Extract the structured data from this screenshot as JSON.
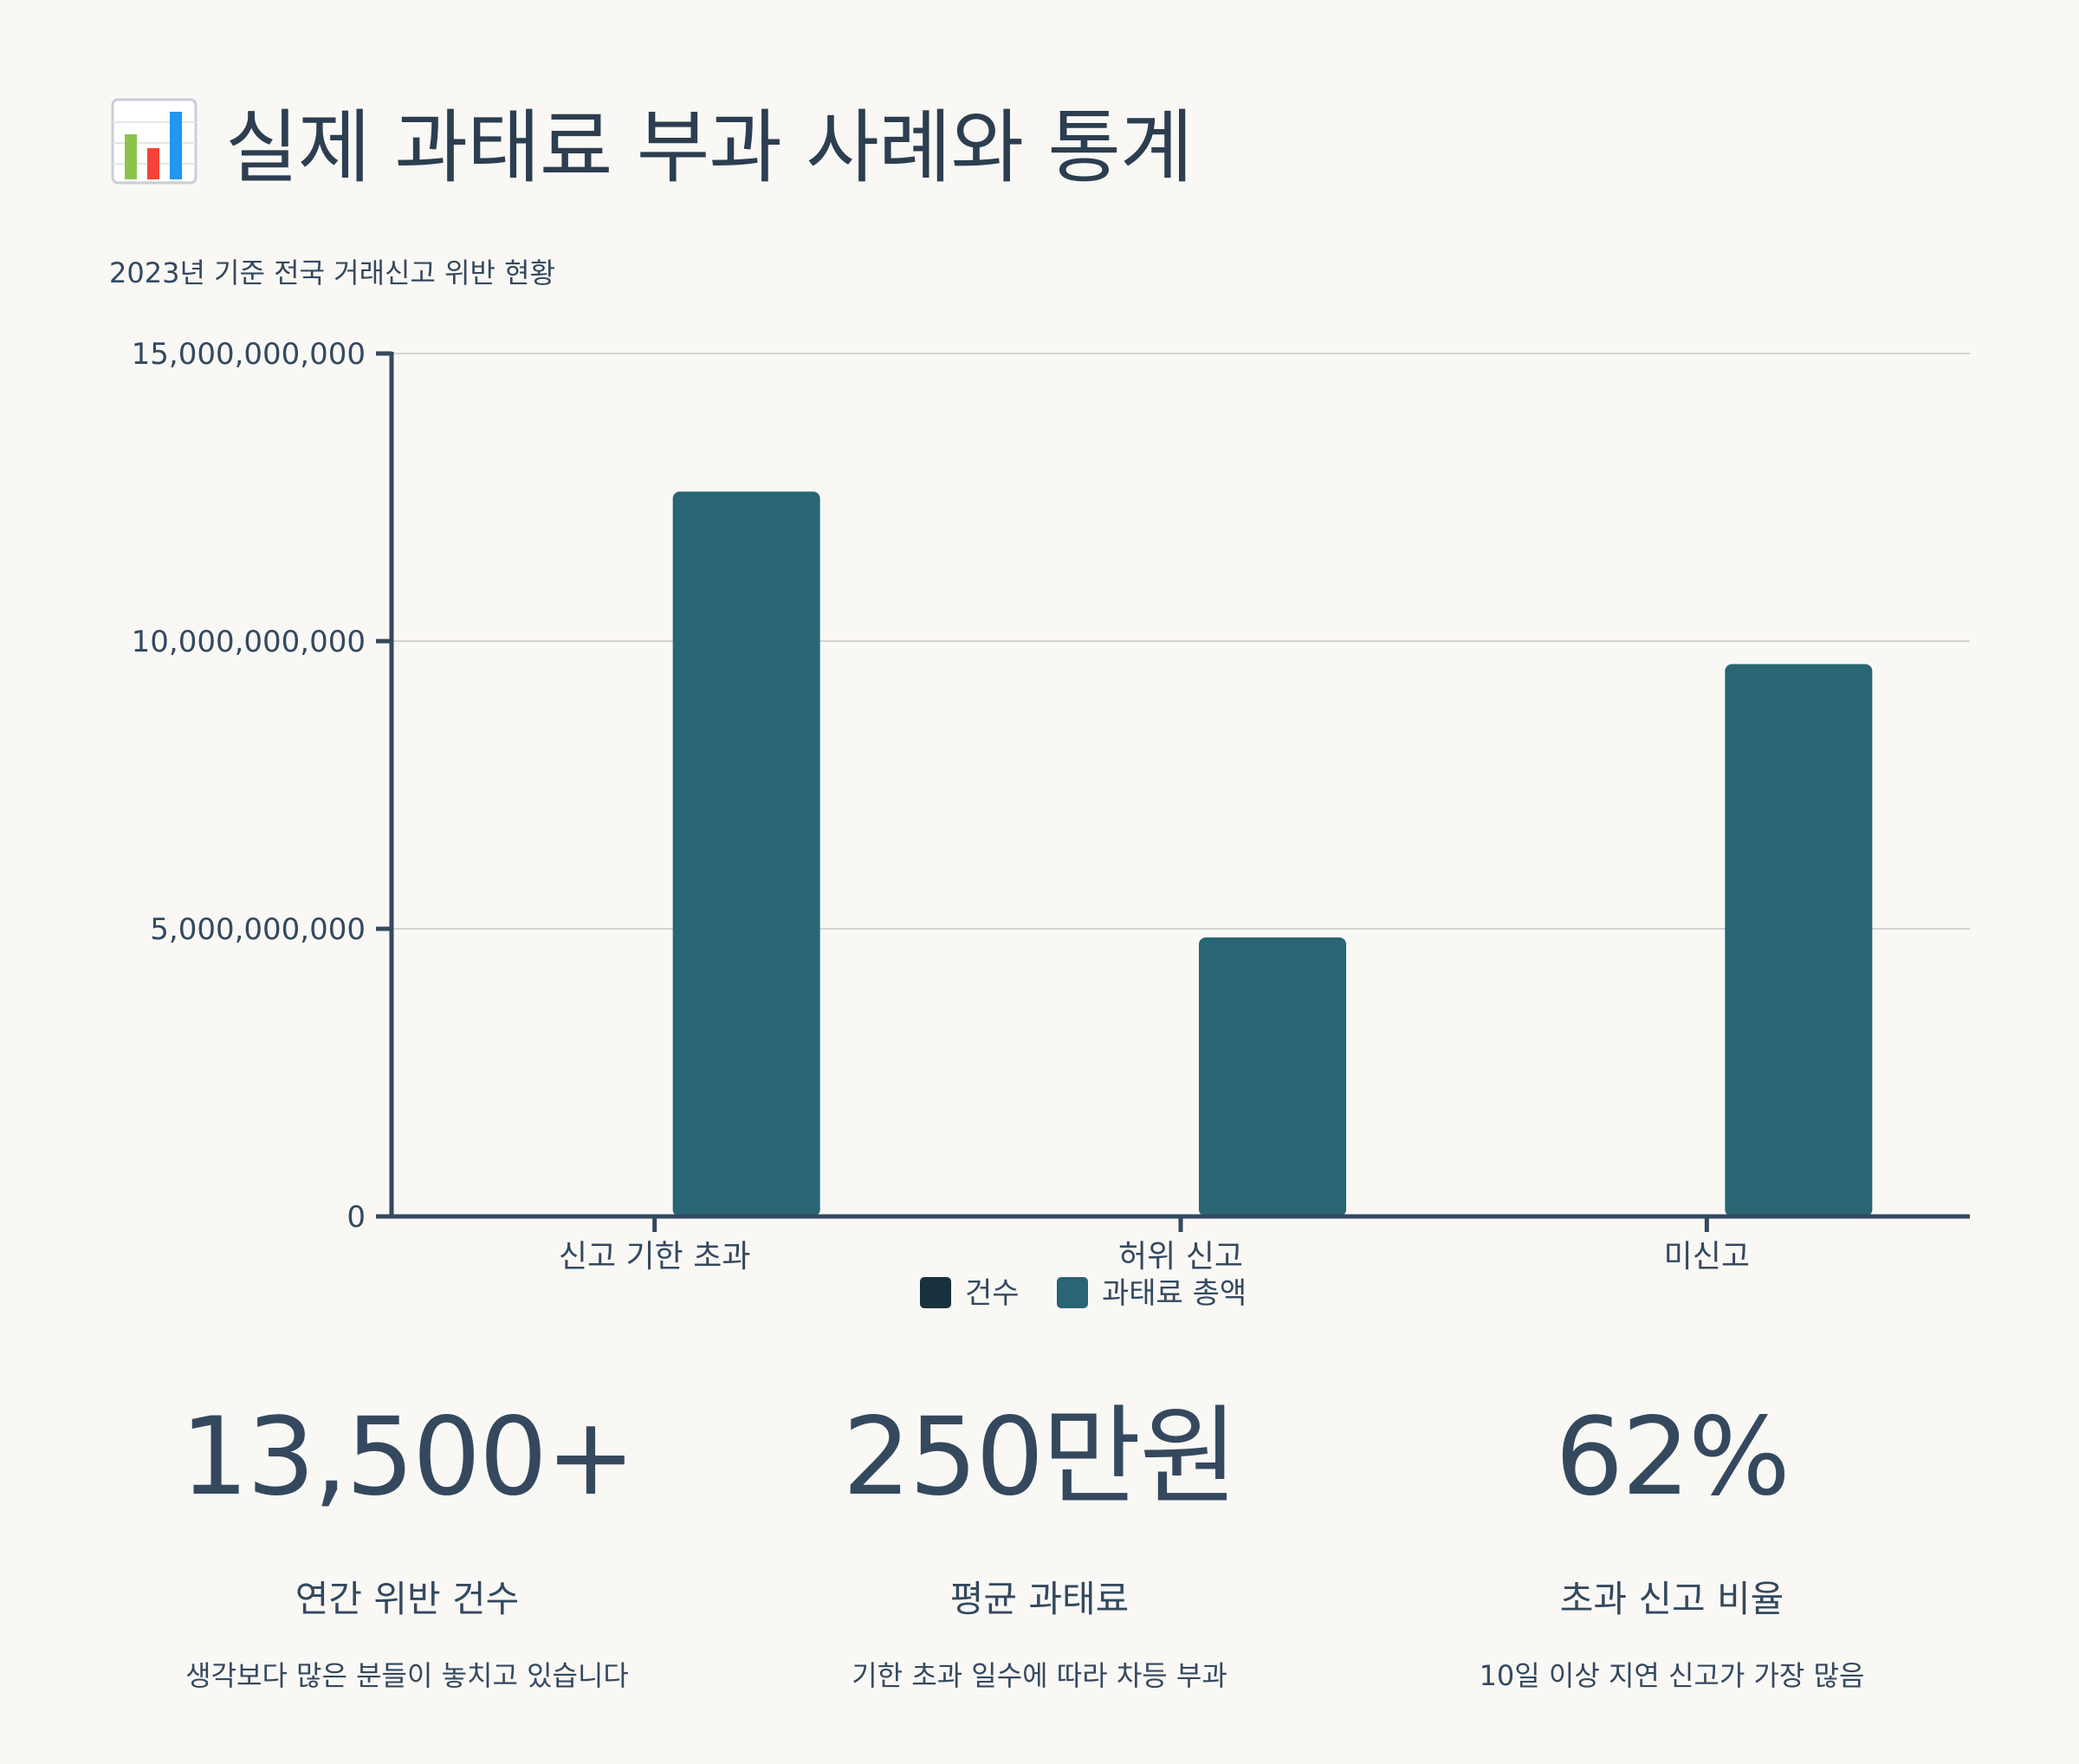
{
  "header": {
    "title": "실제 과태료 부과 사례와 통계",
    "icon": "bar-chart-icon"
  },
  "chart_data": {
    "type": "bar",
    "subtitle": "2023년 기준 전국 거래신고 위반 현황",
    "categories": [
      "신고 기한 초과",
      "허위 신고",
      "미신고"
    ],
    "series": [
      {
        "name": "건수",
        "color": "#17313e",
        "values": [
          8400,
          3200,
          1900
        ]
      },
      {
        "name": "과태료 총액",
        "color": "#296573",
        "values": [
          12600000000,
          4850000000,
          9600000000
        ]
      }
    ],
    "y_ticks": [
      "0",
      "5,000,000,000",
      "10,000,000,000",
      "15,000,000,000"
    ],
    "ylim": [
      0,
      15000000000
    ],
    "grid": true,
    "legend_position": "bottom-center"
  },
  "stats": [
    {
      "value": "13,500+",
      "label": "연간 위반 건수",
      "desc": "생각보다 많은 분들이 놓치고 있습니다"
    },
    {
      "value": "250만원",
      "label": "평균 과태료",
      "desc": "기한 초과 일수에 따라 차등 부과"
    },
    {
      "value": "62%",
      "label": "초과 신고 비율",
      "desc": "10일 이상 지연 신고가 가장 많음"
    }
  ]
}
